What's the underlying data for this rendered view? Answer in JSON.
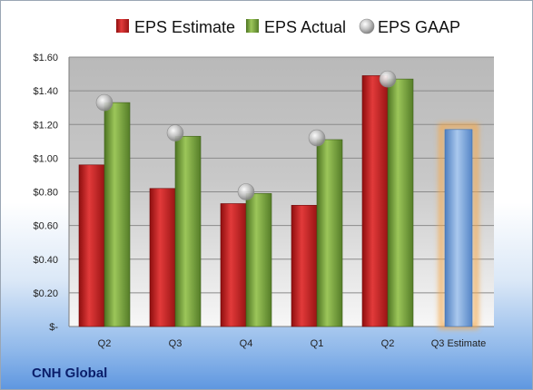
{
  "company": "CNH Global",
  "chart_data": {
    "type": "bar",
    "categories": [
      "Q2",
      "Q3",
      "Q4",
      "Q1",
      "Q2",
      "Q3 Estimate"
    ],
    "series": [
      {
        "name": "EPS Estimate",
        "values": [
          0.96,
          0.82,
          0.73,
          0.72,
          1.49,
          null
        ],
        "color": "#c81e1e"
      },
      {
        "name": "EPS Actual",
        "values": [
          1.33,
          1.13,
          0.79,
          1.11,
          1.47,
          null
        ],
        "color": "#78a83a"
      },
      {
        "name": "EPS GAAP",
        "values": [
          1.33,
          1.15,
          0.8,
          1.12,
          1.47,
          null
        ],
        "color": "#b4b4b4",
        "marker": "sphere"
      }
    ],
    "highlight": {
      "category": "Q3 Estimate",
      "value": 1.17,
      "color": "#6f9fdc",
      "glow": "#f5a94c"
    },
    "y_ticks": [
      "$-",
      "$0.20",
      "$0.40",
      "$0.60",
      "$0.80",
      "$1.00",
      "$1.20",
      "$1.40",
      "$1.60"
    ],
    "ylim": [
      0,
      1.6
    ],
    "grid": true,
    "legend_position": "top"
  }
}
